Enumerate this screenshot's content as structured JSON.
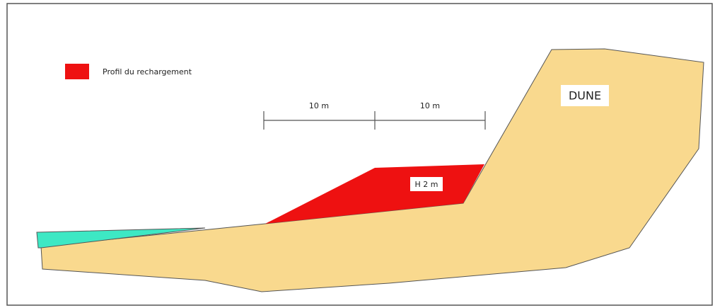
{
  "legend": {
    "label": "Profil du rechargement"
  },
  "scale": {
    "labels": [
      "10 m",
      "10 m"
    ]
  },
  "height_label": "H 2 m",
  "dune_label": "DUNE"
}
